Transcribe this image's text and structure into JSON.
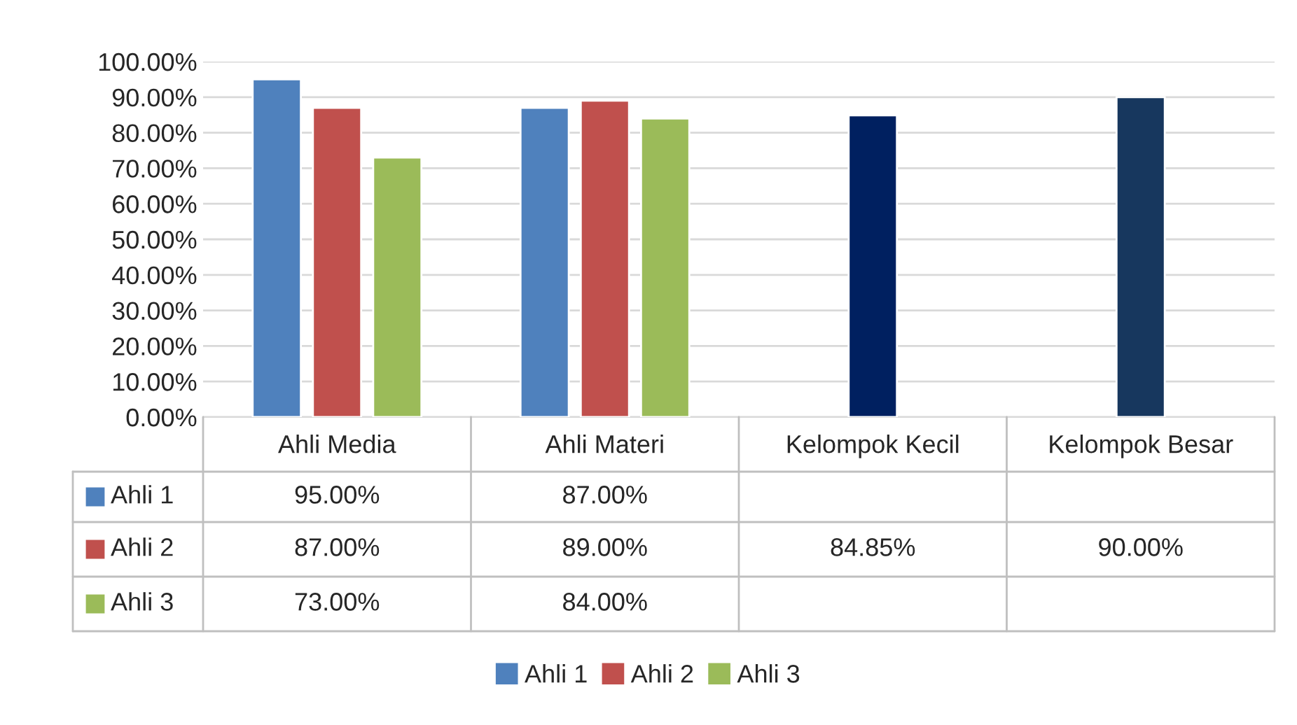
{
  "chart_data": {
    "type": "bar",
    "categories": [
      "Ahli Media",
      "Ahli Materi",
      "Kelompok Kecil",
      "Kelompok Besar"
    ],
    "series": [
      {
        "name": "Ahli 1",
        "color": "#4f81bd",
        "values": [
          95,
          87,
          null,
          null
        ],
        "value_labels": [
          "95.00%",
          "87.00%",
          null,
          null
        ]
      },
      {
        "name": "Ahli 2",
        "color": "#c0504d",
        "colors": [
          "#c0504d",
          "#c0504d",
          "#002060",
          "#17375e"
        ],
        "values": [
          87,
          89,
          84.85,
          90
        ],
        "value_labels": [
          "87.00%",
          "89.00%",
          "84.85%",
          "90.00%"
        ]
      },
      {
        "name": "Ahli 3",
        "color": "#9bbb59",
        "values": [
          73,
          84,
          null,
          null
        ],
        "value_labels": [
          "73.00%",
          "84.00%",
          null,
          null
        ]
      }
    ],
    "ylim": [
      0,
      100
    ],
    "yticks": [
      {
        "value": 0,
        "label": "0.00%"
      },
      {
        "value": 10,
        "label": "10.00%"
      },
      {
        "value": 20,
        "label": "20.00%"
      },
      {
        "value": 30,
        "label": "30.00%"
      },
      {
        "value": 40,
        "label": "40.00%"
      },
      {
        "value": 50,
        "label": "50.00%"
      },
      {
        "value": 60,
        "label": "60.00%"
      },
      {
        "value": 70,
        "label": "70.00%"
      },
      {
        "value": 80,
        "label": "80.00%"
      },
      {
        "value": 90,
        "label": "90.00%"
      },
      {
        "value": 100,
        "label": "100.00%"
      }
    ],
    "grid": "y",
    "legend": "bottom"
  }
}
